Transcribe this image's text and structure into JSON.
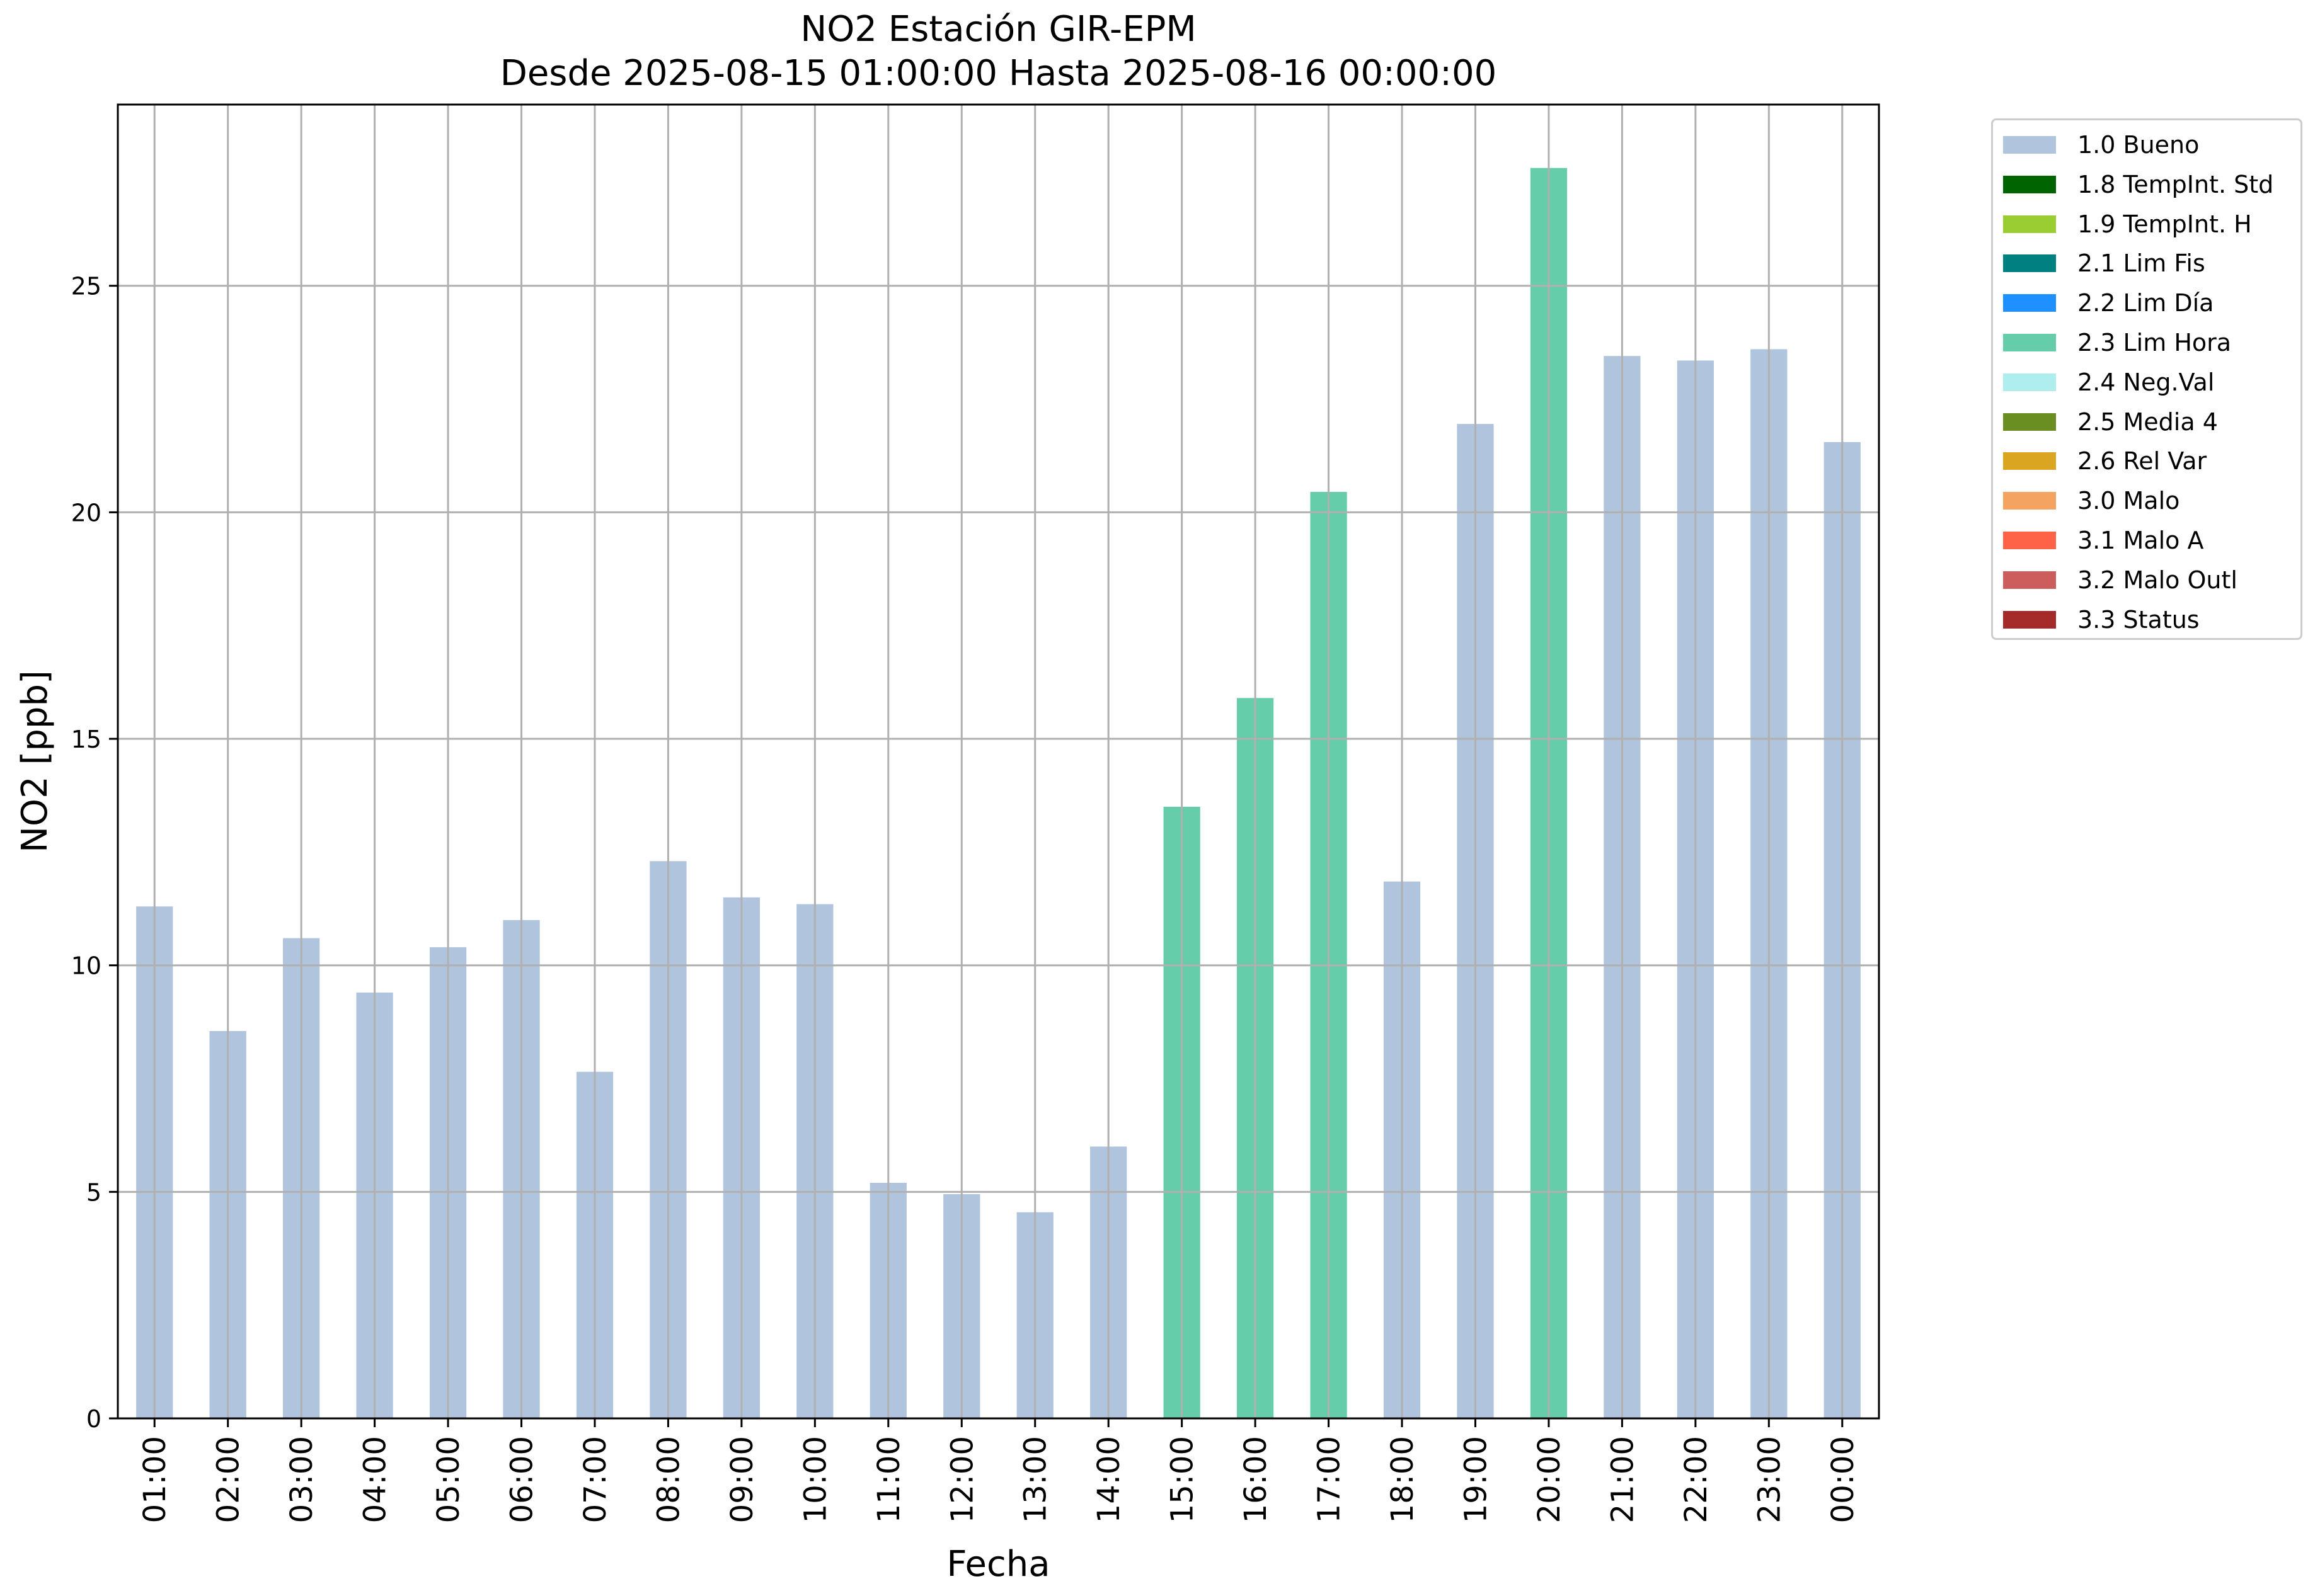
{
  "chart_data": {
    "type": "bar",
    "title": "NO2 Estación GIR-EPM",
    "subtitle": "Desde 2025-08-15 01:00:00 Hasta 2025-08-16 00:00:00",
    "xlabel": "Fecha",
    "ylabel": "NO2 [ppb]",
    "ylim": [
      0,
      29
    ],
    "yticks": [
      "0",
      "5",
      "10",
      "15",
      "20",
      "25"
    ],
    "grid": true,
    "legend_position": "outside-right",
    "categories": [
      "01:00",
      "02:00",
      "03:00",
      "04:00",
      "05:00",
      "06:00",
      "07:00",
      "08:00",
      "09:00",
      "10:00",
      "11:00",
      "12:00",
      "13:00",
      "14:00",
      "15:00",
      "16:00",
      "17:00",
      "18:00",
      "19:00",
      "20:00",
      "21:00",
      "22:00",
      "23:00",
      "00:00"
    ],
    "values": [
      11.3,
      8.55,
      10.6,
      9.4,
      10.4,
      11.0,
      7.65,
      12.3,
      11.5,
      11.35,
      5.2,
      4.95,
      4.55,
      6.0,
      13.5,
      15.9,
      20.45,
      11.85,
      21.95,
      27.6,
      23.45,
      23.35,
      23.6,
      21.55
    ],
    "flags": [
      "1.0 Bueno",
      "1.0 Bueno",
      "1.0 Bueno",
      "1.0 Bueno",
      "1.0 Bueno",
      "1.0 Bueno",
      "1.0 Bueno",
      "1.0 Bueno",
      "1.0 Bueno",
      "1.0 Bueno",
      "1.0 Bueno",
      "1.0 Bueno",
      "1.0 Bueno",
      "1.0 Bueno",
      "2.3 Lim Hora",
      "2.3 Lim Hora",
      "2.3 Lim Hora",
      "1.0 Bueno",
      "1.0 Bueno",
      "2.3 Lim Hora",
      "1.0 Bueno",
      "1.0 Bueno",
      "1.0 Bueno",
      "1.0 Bueno"
    ],
    "legend": [
      {
        "label": "1.0 Bueno",
        "color": "#b0c4de"
      },
      {
        "label": "1.8 TempInt. Std",
        "color": "#006400"
      },
      {
        "label": "1.9 TempInt. H",
        "color": "#9acd32"
      },
      {
        "label": "2.1 Lim Fis",
        "color": "#008080"
      },
      {
        "label": "2.2 Lim Día",
        "color": "#1e90ff"
      },
      {
        "label": "2.3 Lim Hora",
        "color": "#66cdaa"
      },
      {
        "label": "2.4 Neg.Val",
        "color": "#afeeee"
      },
      {
        "label": "2.5 Media 4",
        "color": "#6b8e23"
      },
      {
        "label": "2.6 Rel Var",
        "color": "#daa520"
      },
      {
        "label": "3.0 Malo",
        "color": "#f4a460"
      },
      {
        "label": "3.1 Malo A",
        "color": "#ff6347"
      },
      {
        "label": "3.2 Malo Outl",
        "color": "#cd5c5c"
      },
      {
        "label": "3.3 Status",
        "color": "#a52a2a"
      }
    ]
  }
}
